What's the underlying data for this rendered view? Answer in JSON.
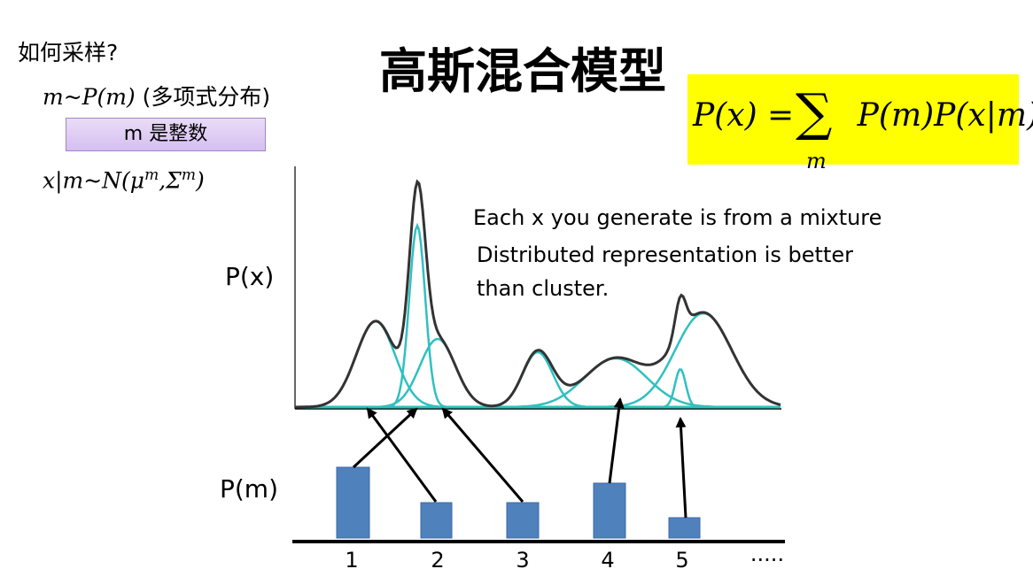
{
  "header": {
    "question": "如何采样?",
    "title": "高斯混合模型"
  },
  "sampling": {
    "line1_math": "m~P(m)",
    "line1_text": "(多项式分布)",
    "box_label": "m 是整数",
    "line2_math_prefix": "x|m~N(μ",
    "line2_sup1": "m",
    "line2_mid": ",Σ",
    "line2_sup2": "m",
    "line2_suffix": ")"
  },
  "formula": {
    "lhs": "P(x) = ",
    "sigma": "∑",
    "sub": "m",
    "rhs": "P(m)P(x|m)",
    "highlight_color": "#ffff00"
  },
  "notes": {
    "line1": "Each x you generate is from a mixture",
    "line2": "Distributed representation is better",
    "line3": "than cluster."
  },
  "axes": {
    "top_label": "P(x)",
    "bottom_label": "P(m)",
    "ticks": [
      "1",
      "2",
      "3",
      "4",
      "5",
      "·····"
    ]
  },
  "chart_data": {
    "type": "bar",
    "categories": [
      "1",
      "2",
      "3",
      "4",
      "5"
    ],
    "values": [
      0.8,
      0.4,
      0.4,
      0.62,
      0.23
    ],
    "bar_color": "#4f81bd",
    "curve_color": "#30c0c0",
    "mixture_color": "#333333",
    "components": [
      {
        "mean": 424,
        "sd": 22,
        "amp": 97
      },
      {
        "mean": 471,
        "sd": 9,
        "amp": 205
      },
      {
        "mean": 494,
        "sd": 20,
        "amp": 77
      },
      {
        "mean": 607,
        "sd": 17,
        "amp": 62
      },
      {
        "mean": 695,
        "sd": 35,
        "amp": 55
      },
      {
        "mean": 768,
        "sd": 6,
        "amp": 43
      },
      {
        "mean": 794,
        "sd": 32,
        "amp": 106
      }
    ],
    "links": [
      {
        "bar": 0,
        "component": 1
      },
      {
        "bar": 1,
        "component": 0
      },
      {
        "bar": 2,
        "component": 2
      },
      {
        "bar": 3,
        "component": 4
      },
      {
        "bar": 4,
        "component": 5
      }
    ]
  }
}
